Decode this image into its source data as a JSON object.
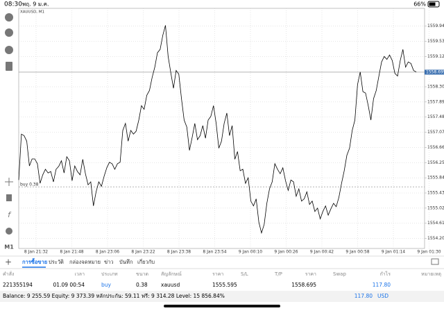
{
  "status": {
    "time": "08:30",
    "date": "พฤ. 9 ม.ค.",
    "battery": "66%"
  },
  "chart_data": {
    "type": "line",
    "title": "XAUUSD, M1",
    "color": "#000000",
    "x_labels": [
      "8 Jan 21:32",
      "8 Jan 21:48",
      "8 Jan 23:06",
      "8 Jan 23:22",
      "8 Jan 23:38",
      "8 Jan 23:54",
      "9 Jan 00:10",
      "9 Jan 00:26",
      "9 Jan 00:42",
      "9 Jan 00:58",
      "9 Jan 01:14",
      "9 Jan 01:30"
    ],
    "values": [
      1555.78,
      1557.02,
      1556.98,
      1556.83,
      1556.16,
      1556.35,
      1556.35,
      1556.22,
      1555.69,
      1555.92,
      1556.07,
      1555.97,
      1556.01,
      1555.73,
      1556.07,
      1556.15,
      1556.3,
      1555.97,
      1556.41,
      1556.3,
      1555.76,
      1556.16,
      1556.01,
      1555.92,
      1556.34,
      1555.95,
      1555.65,
      1555.73,
      1555.08,
      1555.46,
      1555.73,
      1555.61,
      1555.88,
      1556.11,
      1556.26,
      1556.22,
      1556.07,
      1556.22,
      1556.26,
      1557.12,
      1557.31,
      1556.83,
      1557.12,
      1557.02,
      1557.1,
      1557.4,
      1557.79,
      1557.69,
      1558.07,
      1558.2,
      1558.55,
      1558.83,
      1559.22,
      1559.31,
      1559.69,
      1559.96,
      1559.12,
      1558.68,
      1558.26,
      1558.74,
      1558.64,
      1557.98,
      1557.4,
      1557.21,
      1556.58,
      1556.93,
      1557.31,
      1556.87,
      1556.98,
      1557.25,
      1556.91,
      1557.4,
      1557.5,
      1557.79,
      1557.31,
      1556.64,
      1556.83,
      1557.31,
      1557.59,
      1556.98,
      1557.25,
      1556.34,
      1556.55,
      1556.03,
      1556.07,
      1555.69,
      1555.84,
      1555.21,
      1555.08,
      1555.27,
      1554.64,
      1554.35,
      1554.58,
      1555.15,
      1555.54,
      1555.73,
      1556.22,
      1556.07,
      1555.95,
      1556.11,
      1555.76,
      1555.5,
      1555.78,
      1555.73,
      1555.34,
      1555.54,
      1555.21,
      1555.27,
      1555.46,
      1555.12,
      1555.21,
      1554.93,
      1555.02,
      1554.73,
      1554.93,
      1555.08,
      1554.83,
      1555.0,
      1555.15,
      1555.06,
      1555.31,
      1555.69,
      1556.03,
      1556.45,
      1556.64,
      1557.12,
      1557.4,
      1558.36,
      1558.7,
      1558.17,
      1558.13,
      1557.79,
      1557.4,
      1557.98,
      1558.2,
      1558.59,
      1558.97,
      1559.12,
      1559.04,
      1559.16,
      1559.01,
      1558.66,
      1558.59,
      1559.01,
      1559.31,
      1558.83,
      1558.97,
      1558.93,
      1558.74,
      1558.7
    ],
    "ylim": [
      1553.93,
      1560.42
    ],
    "yticks": [
      {
        "value": 1559.94,
        "label": "1559.940"
      },
      {
        "value": 1559.53,
        "label": "1559.530"
      },
      {
        "value": 1559.12,
        "label": "1559.120"
      },
      {
        "value": 1558.3,
        "label": "1558.300"
      },
      {
        "value": 1557.89,
        "label": "1557.890"
      },
      {
        "value": 1557.48,
        "label": "1557.480"
      },
      {
        "value": 1557.07,
        "label": "1557.070"
      },
      {
        "value": 1556.66,
        "label": "1556.660"
      },
      {
        "value": 1556.25,
        "label": "1556.250"
      },
      {
        "value": 1555.84,
        "label": "1555.840"
      },
      {
        "value": 1555.43,
        "label": "1555.430"
      },
      {
        "value": 1555.02,
        "label": "1555.020"
      },
      {
        "value": 1554.61,
        "label": "1554.610"
      },
      {
        "value": 1554.2,
        "label": "1554.200"
      }
    ],
    "current_price": {
      "value": 1558.695,
      "label": "1558.695"
    },
    "order_line": {
      "value": 1555.595,
      "label": "buy 0.38"
    },
    "timeframe": "M1",
    "grid": true
  },
  "tabs": [
    "การซื้อขาย",
    "ประวัติ",
    "กล่องจดหมาย",
    "ข่าว",
    "บันทึก",
    "เกี่ยวกับ"
  ],
  "table": {
    "header": [
      "คำสั่ง",
      "เวลา",
      "ประเภท",
      "ขนาด",
      "สัญลักษณ์",
      "ราคา",
      "S/L",
      "T/P",
      "ราคา",
      "Swap",
      "กำไร",
      "หมายเหตุ"
    ],
    "rows": [
      [
        "221355194",
        "01.09 00:54",
        "buy",
        "0.38",
        "xauusd",
        "1555.595",
        "",
        "",
        "1558.695",
        "",
        "117.80",
        ""
      ]
    ]
  },
  "footer": {
    "summary": "Balance: 9 255.59 Equity: 9 373.39 หลักประกัน: 59.11 ฟรี: 9 314.28 Level: 15 856.84%",
    "profit": "117.80",
    "currency": "USD"
  }
}
